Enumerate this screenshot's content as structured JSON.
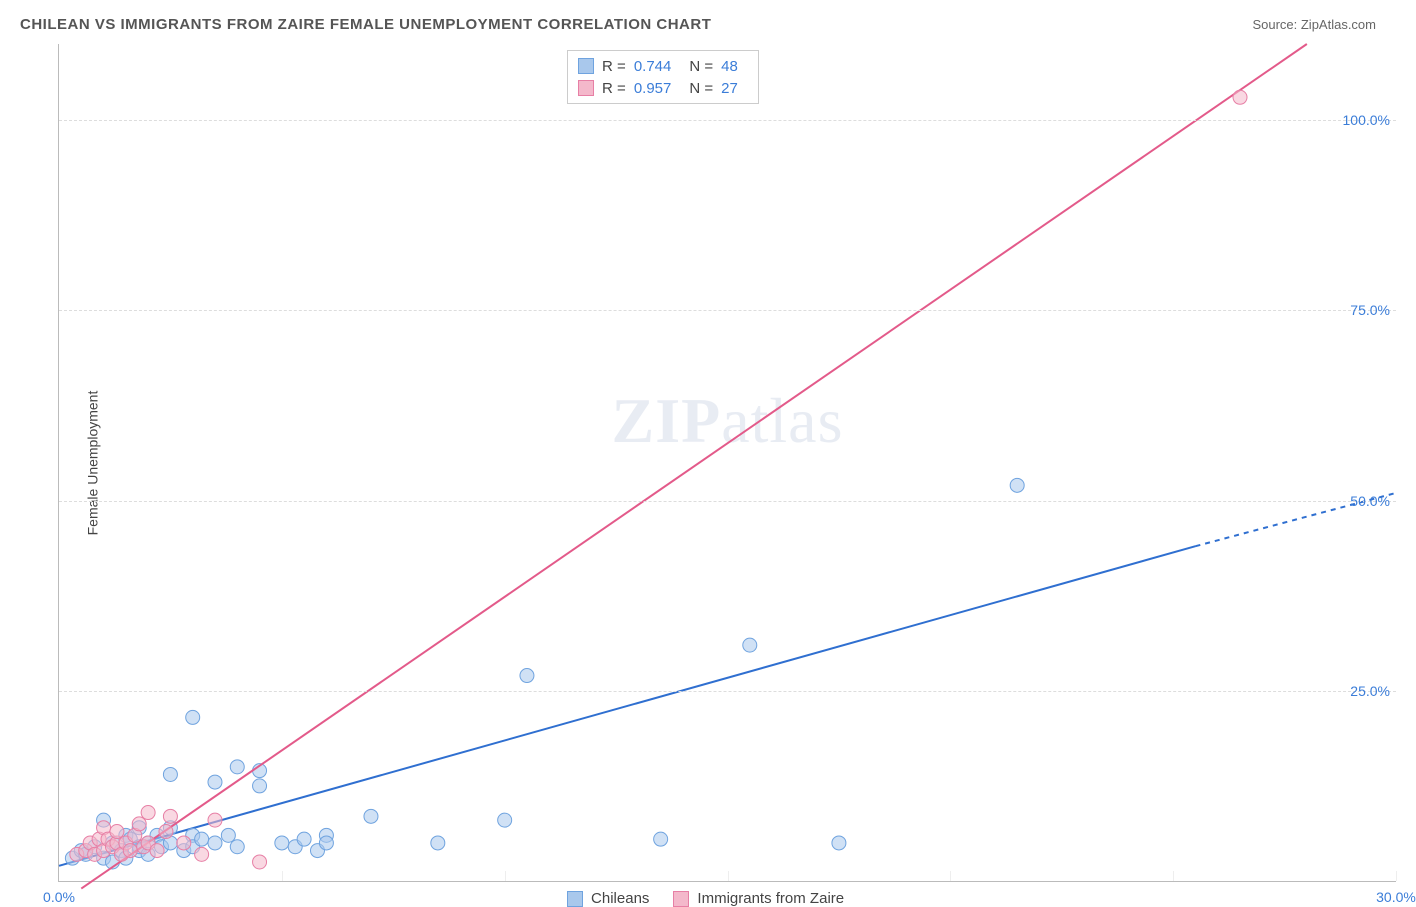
{
  "header": {
    "title": "CHILEAN VS IMMIGRANTS FROM ZAIRE FEMALE UNEMPLOYMENT CORRELATION CHART",
    "source_prefix": "Source: ",
    "source_name": "ZipAtlas.com"
  },
  "chart": {
    "type": "scatter",
    "ylabel": "Female Unemployment",
    "background_color": "#ffffff",
    "grid_color": "#dddddd",
    "axis_color": "#bbbbbb",
    "xlim": [
      0,
      30
    ],
    "ylim": [
      0,
      110
    ],
    "xtick_positions": [
      0,
      30
    ],
    "xtick_labels": [
      "0.0%",
      "30.0%"
    ],
    "ytick_positions": [
      25,
      50,
      75,
      100
    ],
    "ytick_labels": [
      "25.0%",
      "50.0%",
      "75.0%",
      "100.0%"
    ],
    "vgrid_positions": [
      5,
      10,
      15,
      20,
      25,
      30
    ],
    "watermark": "ZIPatlas",
    "series": [
      {
        "key": "chileans",
        "label": "Chileans",
        "color_fill": "#a9c8ec",
        "color_stroke": "#6fa3df",
        "line_color": "#2f6fd0",
        "r_value": "0.744",
        "n_value": "48",
        "marker_radius": 7,
        "trend": {
          "x1": 0,
          "y1": 2,
          "x2": 25.5,
          "y2": 44,
          "dash_x2": 30,
          "dash_y2": 51
        },
        "points": [
          [
            0.3,
            3
          ],
          [
            0.5,
            4
          ],
          [
            0.6,
            3.5
          ],
          [
            0.8,
            4.5
          ],
          [
            1.0,
            3
          ],
          [
            1.0,
            8
          ],
          [
            1.2,
            5
          ],
          [
            1.2,
            2.5
          ],
          [
            1.4,
            4
          ],
          [
            1.5,
            6
          ],
          [
            1.5,
            3
          ],
          [
            1.6,
            5.5
          ],
          [
            1.8,
            4
          ],
          [
            1.8,
            7
          ],
          [
            1.8,
            4.5
          ],
          [
            2.0,
            5
          ],
          [
            2.0,
            3.5
          ],
          [
            2.2,
            6
          ],
          [
            2.3,
            4.5
          ],
          [
            2.5,
            5
          ],
          [
            2.5,
            7
          ],
          [
            2.5,
            14
          ],
          [
            2.8,
            4
          ],
          [
            3.0,
            6
          ],
          [
            3.0,
            4.5
          ],
          [
            3.0,
            21.5
          ],
          [
            3.2,
            5.5
          ],
          [
            3.5,
            13
          ],
          [
            3.5,
            5
          ],
          [
            3.8,
            6
          ],
          [
            4.0,
            4.5
          ],
          [
            4.0,
            15
          ],
          [
            4.5,
            12.5
          ],
          [
            4.5,
            14.5
          ],
          [
            5.0,
            5
          ],
          [
            5.3,
            4.5
          ],
          [
            5.5,
            5.5
          ],
          [
            5.8,
            4
          ],
          [
            6.0,
            6
          ],
          [
            6.0,
            5
          ],
          [
            7.0,
            8.5
          ],
          [
            8.5,
            5
          ],
          [
            10.0,
            8
          ],
          [
            10.5,
            27
          ],
          [
            13.5,
            5.5
          ],
          [
            15.5,
            31
          ],
          [
            17.5,
            5
          ],
          [
            21.5,
            52
          ]
        ]
      },
      {
        "key": "zaire",
        "label": "Immigrants from Zaire",
        "color_fill": "#f4b8cb",
        "color_stroke": "#e77fa5",
        "line_color": "#e35a8a",
        "r_value": "0.957",
        "n_value": "27",
        "marker_radius": 7,
        "trend": {
          "x1": 0.5,
          "y1": -1,
          "x2": 28,
          "y2": 110,
          "dash_x2": 28,
          "dash_y2": 110
        },
        "points": [
          [
            0.4,
            3.5
          ],
          [
            0.6,
            4
          ],
          [
            0.7,
            5
          ],
          [
            0.8,
            3.5
          ],
          [
            0.9,
            5.5
          ],
          [
            1.0,
            4
          ],
          [
            1.0,
            7
          ],
          [
            1.1,
            5.5
          ],
          [
            1.2,
            4.5
          ],
          [
            1.3,
            5
          ],
          [
            1.3,
            6.5
          ],
          [
            1.4,
            3.5
          ],
          [
            1.5,
            5
          ],
          [
            1.6,
            4
          ],
          [
            1.7,
            6
          ],
          [
            1.8,
            7.5
          ],
          [
            1.9,
            4.5
          ],
          [
            2.0,
            5
          ],
          [
            2.0,
            9
          ],
          [
            2.2,
            4
          ],
          [
            2.4,
            6.5
          ],
          [
            2.5,
            8.5
          ],
          [
            2.8,
            5
          ],
          [
            3.2,
            3.5
          ],
          [
            3.5,
            8
          ],
          [
            4.5,
            2.5
          ],
          [
            26.5,
            103
          ]
        ]
      }
    ],
    "legend_top": {
      "r_label": "R =",
      "n_label": "N ="
    }
  }
}
